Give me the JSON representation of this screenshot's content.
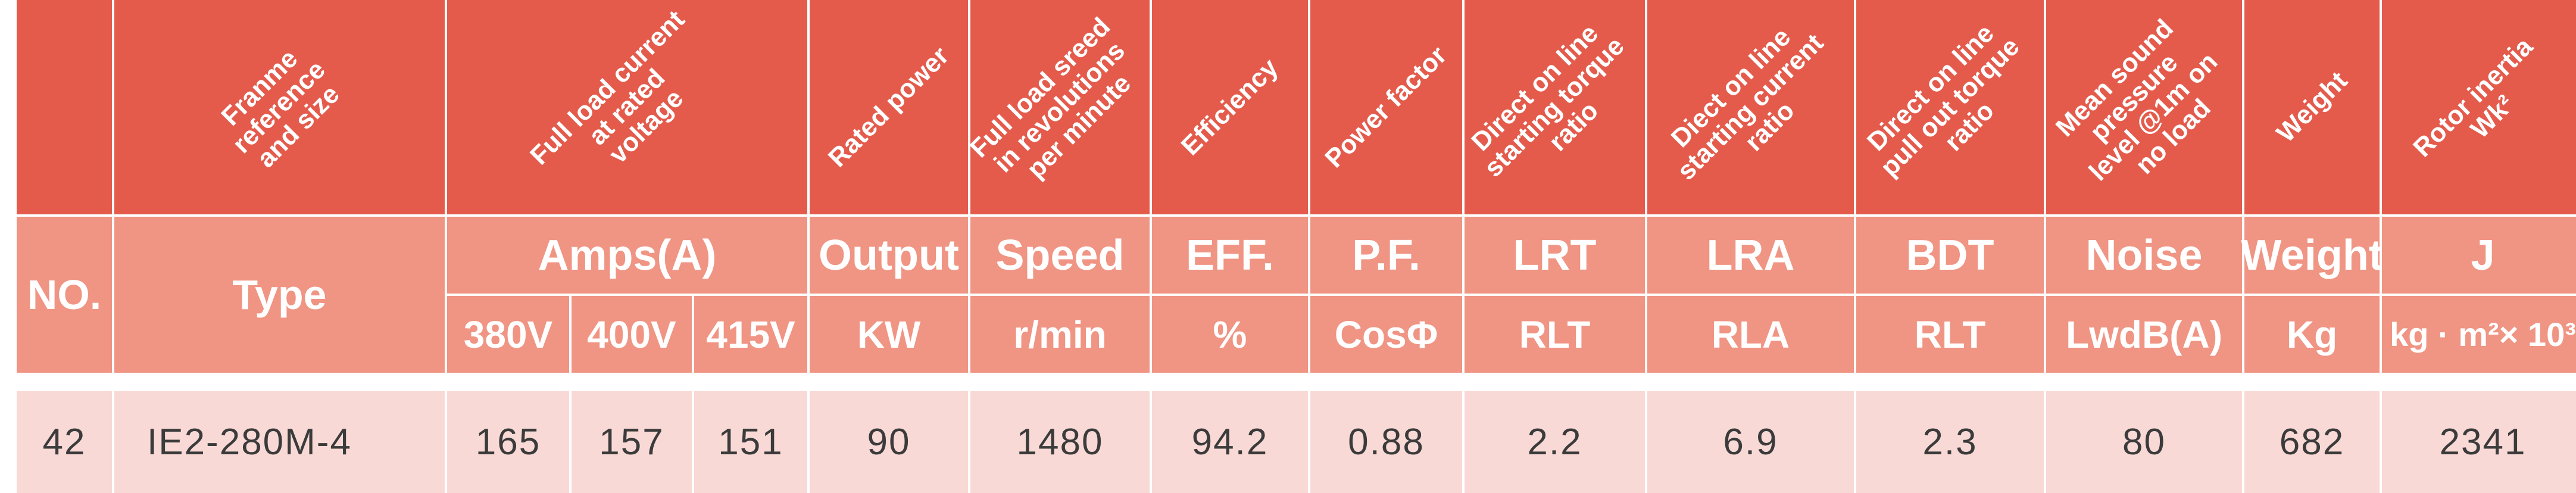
{
  "rotated_headers": [
    "",
    "Franme\nreference\nand size",
    "Full load current\nat rated\nvoltage",
    "Rated power",
    "Full load sreed\nin revolutions\nper minute",
    "Efficiency",
    "Power factor",
    "Direct on line\nstarting torque\nratio",
    "Diect on line\nstarting current\nratio",
    "Direct on line\npull out torque\nratio",
    "Mean sound\npressure\nlevel @1m on\nno load",
    "Weight",
    "Rotor inertia\nWk²"
  ],
  "headers": {
    "no": "NO.",
    "type": "Type",
    "amps": "Amps(A)",
    "output": "Output",
    "speed": "Speed",
    "eff": "EFF.",
    "pf": "P.F.",
    "lrt": "LRT",
    "lra": "LRA",
    "bdt": "BDT",
    "noise": "Noise",
    "weight": "Weight",
    "j": "J"
  },
  "units": {
    "v380": "380V",
    "v400": "400V",
    "v415": "415V",
    "kw": "KW",
    "rmin": "r/min",
    "pct": "%",
    "cos": "CosΦ",
    "rlt1": "RLT",
    "rla": "RLA",
    "rlt2": "RLT",
    "lwdb": "LwdB(A)",
    "kg": "Kg",
    "inertia": "kg · m²× 10³"
  },
  "row": {
    "no": "42",
    "type": "IE2-280M-4",
    "a380": "165",
    "a400": "157",
    "a415": "151",
    "kw": "90",
    "rpm": "1480",
    "eff": "94.2",
    "pf": "0.88",
    "lrt": "2.2",
    "lra": "6.9",
    "bdt": "2.3",
    "noise": "80",
    "weight": "682",
    "j": "2341"
  }
}
